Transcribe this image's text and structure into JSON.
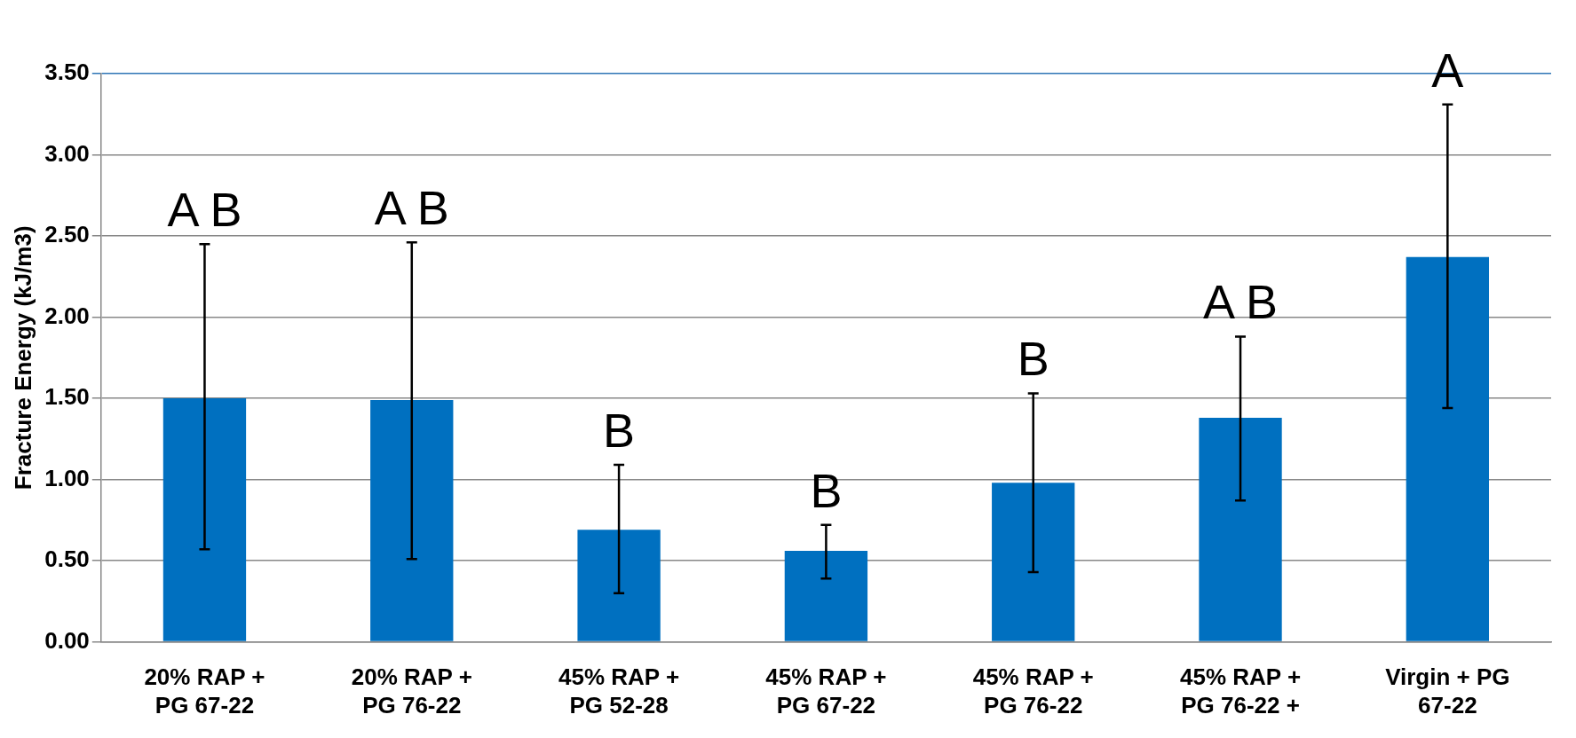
{
  "chart_data": {
    "type": "bar",
    "ylabel": "Fracture Energy (kJ/m3)",
    "categories": [
      "20% RAP + PG 67-22",
      "20% RAP + PG 76-22",
      "45% RAP + PG 52-28",
      "45% RAP + PG 67-22",
      "45% RAP + PG 76-22",
      "45% RAP + PG 76-22 +",
      "Virgin + PG 67-22"
    ],
    "values": [
      1.5,
      1.49,
      0.69,
      0.56,
      0.98,
      1.38,
      2.37
    ],
    "errors": [
      [
        0.57,
        2.45
      ],
      [
        0.51,
        2.46
      ],
      [
        0.3,
        1.09
      ],
      [
        0.39,
        0.72
      ],
      [
        0.43,
        1.53
      ],
      [
        0.87,
        1.88
      ],
      [
        1.44,
        3.31
      ]
    ],
    "color": "#0070c0",
    "ylim": [
      0,
      3.5
    ],
    "yticks": [
      {
        "value": 0,
        "label": "0.00"
      },
      {
        "value": 0.5,
        "label": "0.50"
      },
      {
        "value": 1,
        "label": "1.00"
      },
      {
        "value": 1.5,
        "label": "1.50"
      },
      {
        "value": 2,
        "label": "2.00"
      },
      {
        "value": 2.5,
        "label": "2.50"
      },
      {
        "value": 3,
        "label": "3.00"
      },
      {
        "value": 3.5,
        "label": "3.50"
      }
    ],
    "grid": "y",
    "legend": false,
    "annotations": [
      "A B",
      "A B",
      "B",
      "B",
      "B",
      "A B",
      "A"
    ]
  }
}
